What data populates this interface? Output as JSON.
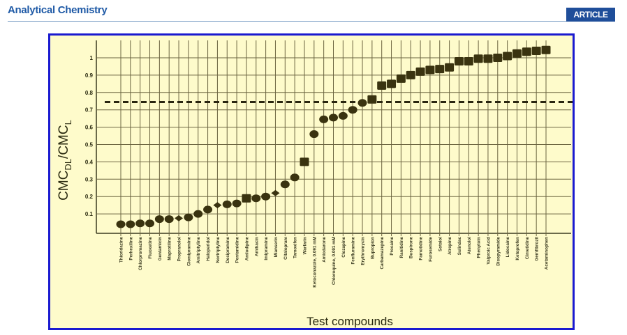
{
  "header": {
    "journal": "Analytical Chemistry",
    "badge": "ARTICLE"
  },
  "chart_data": {
    "type": "scatter",
    "title": "",
    "xlabel": "Test compounds",
    "ylabel": "CMC_DL/CMC_L",
    "ylabel_parts": {
      "main1": "CMC",
      "sub1": "DL",
      "main2": "/CMC",
      "sub2": "L"
    },
    "ylim": [
      0,
      1.1
    ],
    "yticks": [
      "0.1",
      "0.2",
      "0.3",
      "0.4",
      "0.5",
      "0.6",
      "0.7",
      "0.8",
      "0.9",
      "1"
    ],
    "grid": true,
    "threshold_line": {
      "y": 0.745,
      "style": "dashed"
    },
    "marker_color": "#3a3310",
    "background": "#fefbcb",
    "categories": [
      "Thioridazine",
      "Perhexiline",
      "Chlorpromazine",
      "Fluoxetine",
      "Gentamicin",
      "Maprotiline",
      "Propranolol",
      "Clomipramine",
      "Amitriptyline",
      "Haloperidol",
      "Nortriptyline",
      "Desipramine",
      "Pentamidine",
      "Amlodipine",
      "Amikacin",
      "Imipramine",
      "Mianserin",
      "Citalopram",
      "Tamoxifen",
      "Warfarin",
      "Ketoconazole, 0.091 mM",
      "Amiodarone",
      "Chloroquine, 0.091 mM",
      "Clozapine",
      "Fenfluramine",
      "Erythromycin",
      "Bupropion",
      "Carbamazepine",
      "Procaine",
      "Ranitidine",
      "Buspirone",
      "Famotidine",
      "Furosemide",
      "Sotalol",
      "Atropine",
      "Sulindac",
      "Atenolol",
      "Phenytoin",
      "Valproic Acid",
      "Disopyramide",
      "Lidocaine",
      "Ketoprofen",
      "Cimetidine",
      "Gemfibrozil",
      "Acetaminophen"
    ],
    "values": [
      0.04,
      0.04,
      0.045,
      0.045,
      0.07,
      0.07,
      0.075,
      0.08,
      0.1,
      0.125,
      0.15,
      0.155,
      0.16,
      0.19,
      0.19,
      0.2,
      0.22,
      0.27,
      0.31,
      0.4,
      0.56,
      0.645,
      0.655,
      0.665,
      0.7,
      0.74,
      0.76,
      0.84,
      0.85,
      0.88,
      0.9,
      0.92,
      0.93,
      0.935,
      0.945,
      0.98,
      0.98,
      0.995,
      0.995,
      1.0,
      1.01,
      1.025,
      1.035,
      1.04,
      1.045
    ],
    "markers": [
      "circle",
      "circle",
      "circle",
      "circle",
      "circle",
      "circle",
      "diamond",
      "circle",
      "circle",
      "circle",
      "diamond",
      "circle",
      "circle",
      "square",
      "circle",
      "circle",
      "diamond",
      "circle",
      "circle",
      "square",
      "circle",
      "circle",
      "circle",
      "circle",
      "circle",
      "circle",
      "square",
      "square",
      "square",
      "square",
      "square",
      "square",
      "square",
      "square",
      "square",
      "square",
      "square",
      "square",
      "square",
      "square",
      "square",
      "square",
      "square",
      "square",
      "square"
    ]
  }
}
